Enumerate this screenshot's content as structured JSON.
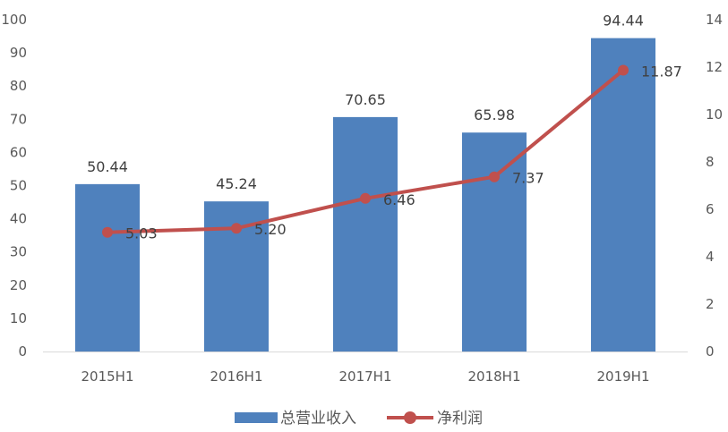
{
  "chart_data": {
    "type": "bar",
    "categories": [
      "2015H1",
      "2016H1",
      "2017H1",
      "2018H1",
      "2019H1"
    ],
    "series": [
      {
        "name": "总营业收入",
        "type": "bar",
        "axis": "left",
        "values": [
          50.44,
          45.24,
          70.65,
          65.98,
          94.44
        ],
        "labels": [
          "50.44",
          "45.24",
          "70.65",
          "65.98",
          "94.44"
        ],
        "color": "#4F81BD"
      },
      {
        "name": "净利润",
        "type": "line",
        "axis": "right",
        "values": [
          5.03,
          5.2,
          6.46,
          7.37,
          11.87
        ],
        "labels": [
          "5.03",
          "5.20",
          "6.46",
          "7.37",
          "11.87"
        ],
        "color": "#C0504D"
      }
    ],
    "y_left": {
      "ylim": [
        0,
        100
      ],
      "ticks": [
        "0",
        "10",
        "20",
        "30",
        "40",
        "50",
        "60",
        "70",
        "80",
        "90",
        "100"
      ]
    },
    "y_right": {
      "ylim": [
        0,
        14
      ],
      "ticks": [
        "0",
        "2",
        "4",
        "6",
        "8",
        "10",
        "12",
        "14"
      ]
    },
    "grid": false,
    "legend_position": "bottom"
  }
}
